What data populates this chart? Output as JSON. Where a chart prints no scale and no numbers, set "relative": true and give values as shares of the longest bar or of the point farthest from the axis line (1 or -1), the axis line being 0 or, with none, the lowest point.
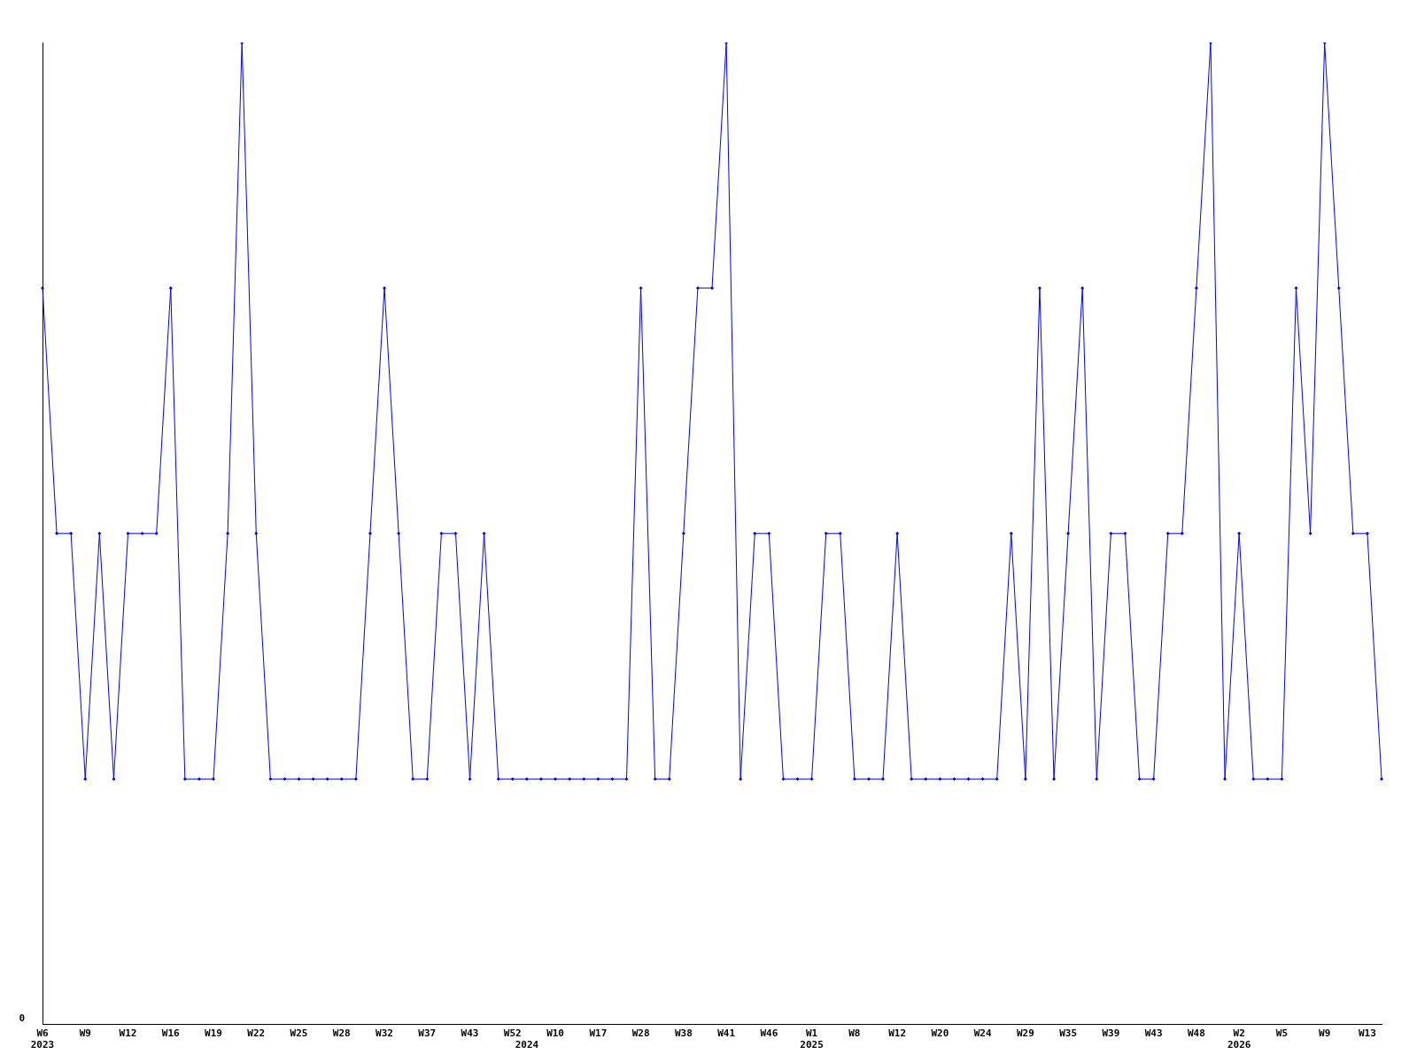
{
  "chart_data": {
    "type": "line",
    "relative": true,
    "annotations": [
      "0"
    ],
    "color": "#0000ff",
    "marker": "diamond",
    "line_style": "solid",
    "grid": false,
    "legend": false,
    "categories": [
      "W6\n2023",
      null,
      null,
      "W9",
      null,
      null,
      "W12",
      null,
      null,
      "W16",
      null,
      null,
      "W19",
      null,
      null,
      "W22",
      null,
      null,
      "W25",
      null,
      null,
      "W28",
      null,
      null,
      "W32",
      null,
      null,
      "W37",
      null,
      null,
      "W43",
      null,
      null,
      "W52",
      "\n2024",
      null,
      "W10",
      null,
      null,
      "W17",
      null,
      null,
      "W28",
      null,
      null,
      "W38",
      null,
      null,
      "W41",
      null,
      null,
      "W46",
      null,
      null,
      "W1\n2025",
      null,
      null,
      "W8",
      null,
      null,
      "W12",
      null,
      null,
      "W20",
      null,
      null,
      "W24",
      null,
      null,
      "W29",
      null,
      null,
      "W35",
      null,
      null,
      "W39",
      null,
      null,
      "W43",
      null,
      null,
      "W48",
      null,
      null,
      "W2\n2026",
      null,
      null,
      "W5",
      null,
      null,
      "W9",
      null,
      null,
      "W13",
      null
    ],
    "values": [
      0.75,
      0.5,
      0.5,
      0.25,
      0.5,
      0.25,
      0.5,
      0.5,
      0.5,
      0.75,
      0.25,
      0.25,
      0.25,
      0.5,
      1,
      0.5,
      0.25,
      0.25,
      0.25,
      0.25,
      0.25,
      0.25,
      0.25,
      0.5,
      0.75,
      0.5,
      0.25,
      0.25,
      0.5,
      0.5,
      0.25,
      0.5,
      0.25,
      0.25,
      0.25,
      0.25,
      0.25,
      0.25,
      0.25,
      0.25,
      0.25,
      0.25,
      0.75,
      0.25,
      0.25,
      0.5,
      0.75,
      0.75,
      1,
      0.25,
      0.5,
      0.5,
      0.25,
      0.25,
      0.25,
      0.5,
      0.5,
      0.25,
      0.25,
      0.25,
      0.5,
      0.25,
      0.25,
      0.25,
      0.25,
      0.25,
      0.25,
      0.25,
      0.5,
      0.25,
      0.75,
      0.25,
      0.5,
      0.75,
      0.25,
      0.5,
      0.5,
      0.25,
      0.25,
      0.5,
      0.5,
      0.75,
      1,
      0.25,
      0.5,
      0.25,
      0.25,
      0.25,
      0.75,
      0.5,
      1,
      0.75,
      0.5,
      0.5,
      0.25
    ]
  }
}
